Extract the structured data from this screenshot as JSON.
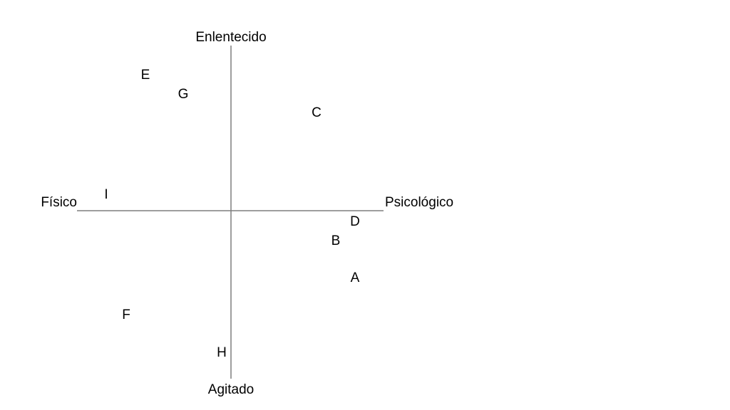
{
  "axes": {
    "top": "Enlentecido",
    "bottom": "Agitado",
    "left": "Físico",
    "right": "Psicológico"
  },
  "points": [
    {
      "label": "E"
    },
    {
      "label": "G"
    },
    {
      "label": "C"
    },
    {
      "label": "I"
    },
    {
      "label": "D"
    },
    {
      "label": "B"
    },
    {
      "label": "A"
    },
    {
      "label": "F"
    },
    {
      "label": "H"
    }
  ]
}
